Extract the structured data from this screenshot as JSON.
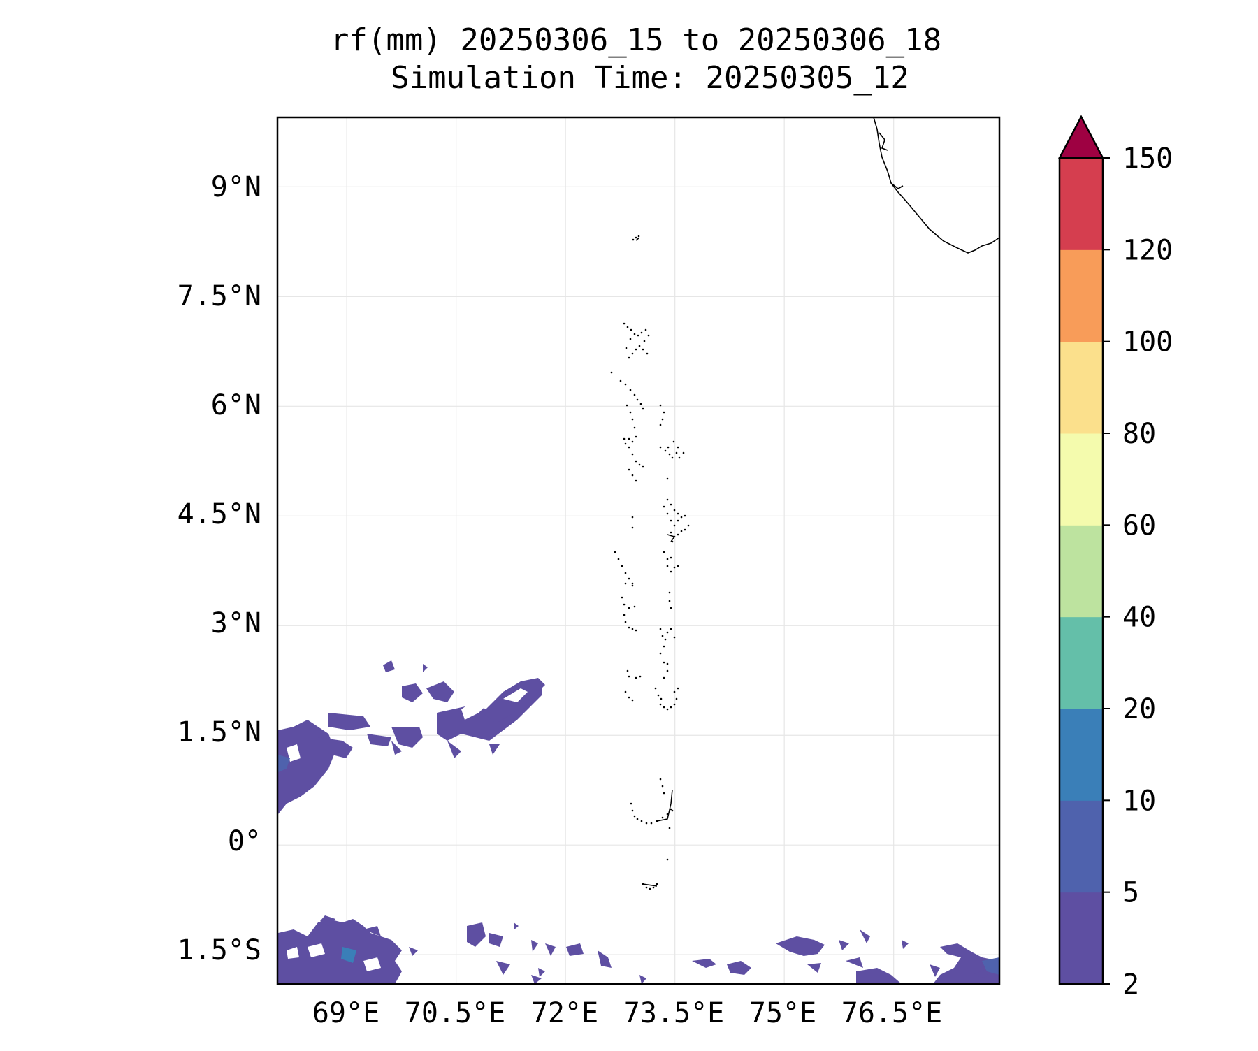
{
  "title": {
    "line1": "rf(mm) 20250306_15 to 20250306_18",
    "line2": "Simulation Time: 20250305_12"
  },
  "map": {
    "lat_labels": [
      "9°N",
      "7.5°N",
      "6°N",
      "4.5°N",
      "3°N",
      "1.5°N",
      "0°",
      "1.5°S"
    ],
    "lon_labels": [
      "69°E",
      "70.5°E",
      "72°E",
      "73.5°E",
      "75°E",
      "76.5°E"
    ],
    "lat_values": [
      9,
      7.5,
      6,
      4.5,
      3,
      1.5,
      0,
      -1.5
    ],
    "lon_values": [
      69,
      70.5,
      72,
      73.5,
      75,
      76.5
    ],
    "extent": {
      "lon_min": 68.05,
      "lon_max": 77.95,
      "lat_min": -1.9,
      "lat_max": 9.95
    },
    "gridlines": true
  },
  "colorbar": {
    "levels": [
      "2",
      "5",
      "10",
      "20",
      "40",
      "60",
      "80",
      "100",
      "120",
      "150"
    ],
    "colors": [
      "#5e4fa2",
      "#4f62ad",
      "#3a7fb8",
      "#64bfa9",
      "#bde39f",
      "#f4fbad",
      "#fbe08c",
      "#f89c59",
      "#d53e4f",
      "#9e0142"
    ],
    "extend": "max"
  },
  "chart_data": {
    "type": "heatmap",
    "title": "rf(mm) 20250306_15 to 20250306_18\nSimulation Time: 20250305_12",
    "xlabel": "",
    "ylabel": "",
    "xlim": [
      68.05,
      77.95
    ],
    "ylim": [
      -1.9,
      9.95
    ],
    "color_levels": [
      2,
      5,
      10,
      20,
      40,
      60,
      80,
      100,
      120,
      150
    ],
    "rain_regions": [
      {
        "area": "band 69–71.8°E, 1.4–2.2°N",
        "level": "2-10 mm"
      },
      {
        "area": "68–69°E, 0.5–1.5°N",
        "level": "2-20 mm"
      },
      {
        "area": "68–70°E, -1.9 to -1.3°S",
        "level": "2-20 mm"
      },
      {
        "area": "70.5–73°E, -1.9 to -1.1°S",
        "level": "2-10 mm"
      },
      {
        "area": "74–78°E, -1.9 to -1.3°S",
        "level": "2-10 mm"
      }
    ]
  }
}
